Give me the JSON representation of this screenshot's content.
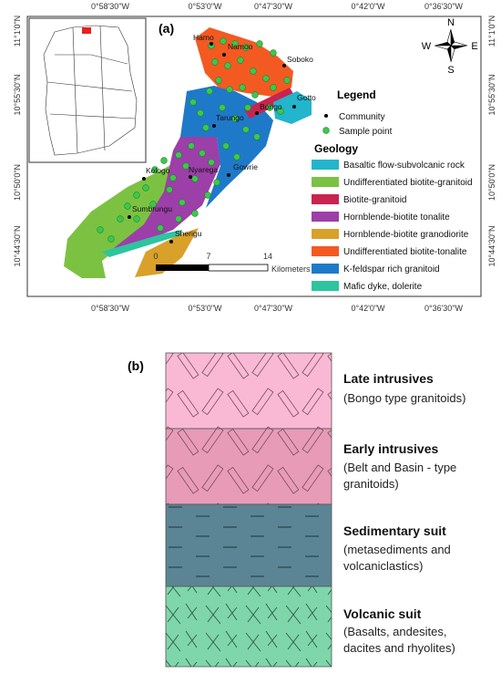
{
  "panel_a": {
    "label": "(a)",
    "top_labels": [
      "0°58'30\"W",
      "0°53'0\"W",
      "0°47'30\"W",
      "0°42'0\"W",
      "0°36'30\"W"
    ],
    "bottom_labels": [
      "0°58'30\"W",
      "0°53'0\"W",
      "0°47'30\"W",
      "0°42'0\"W",
      "0°36'30\"W"
    ],
    "left_labels": [
      "11°1'0\"N",
      "10°55'30\"N",
      "10°50'0\"N",
      "10°44'30\"N"
    ],
    "right_labels": [
      "11°1'0\"N",
      "10°55'30\"N",
      "10°50'0\"N",
      "10°44'30\"N"
    ],
    "communities": [
      "Hamo",
      "Namoo",
      "Soboko",
      "Bongo",
      "Gotto",
      "Tarungo",
      "Nyarega",
      "Gowrie",
      "Kologo",
      "Sumbrungu",
      "Sherigu"
    ],
    "compass": {
      "n": "N",
      "s": "S",
      "e": "E",
      "w": "W"
    },
    "legend": {
      "title": "Legend",
      "community": "Community",
      "sample": "Sample point"
    },
    "geology": {
      "title": "Geology",
      "items": [
        {
          "name": "Basaltic flow-subvolcanic rock",
          "color": "#22b5cc"
        },
        {
          "name": "Undifferentiated biotite-granitoid",
          "color": "#7cc242"
        },
        {
          "name": "Biotite-granitoid",
          "color": "#c9234f"
        },
        {
          "name": "Hornblende-biotite tonalite",
          "color": "#9c3fa8"
        },
        {
          "name": "Hornblende-biotite granodiorite",
          "color": "#d9a02a"
        },
        {
          "name": "Undifferentiated biotite-tonalite",
          "color": "#f25a22"
        },
        {
          "name": "K-feldspar rich granitoid",
          "color": "#1f79c9"
        },
        {
          "name": "Mafic dyke, dolerite",
          "color": "#2ec49f"
        }
      ]
    },
    "scale": {
      "labels": [
        "0",
        "7",
        "14"
      ],
      "unit": "Kilometers"
    }
  },
  "panel_b": {
    "label": "(b)",
    "layers": [
      {
        "title": "Late intrusives",
        "lines": [
          "(Bongo type granitoids)"
        ]
      },
      {
        "title": "Early intrusives",
        "lines": [
          "(Belt and Basin - type",
          "granitoids)"
        ]
      },
      {
        "title": "Sedimentary suit",
        "lines": [
          "(metasediments and",
          "volcaniclastics)"
        ]
      },
      {
        "title": "Volcanic suit",
        "lines": [
          "(Basalts, andesites,",
          "dacites and rhyolites)"
        ]
      }
    ]
  }
}
